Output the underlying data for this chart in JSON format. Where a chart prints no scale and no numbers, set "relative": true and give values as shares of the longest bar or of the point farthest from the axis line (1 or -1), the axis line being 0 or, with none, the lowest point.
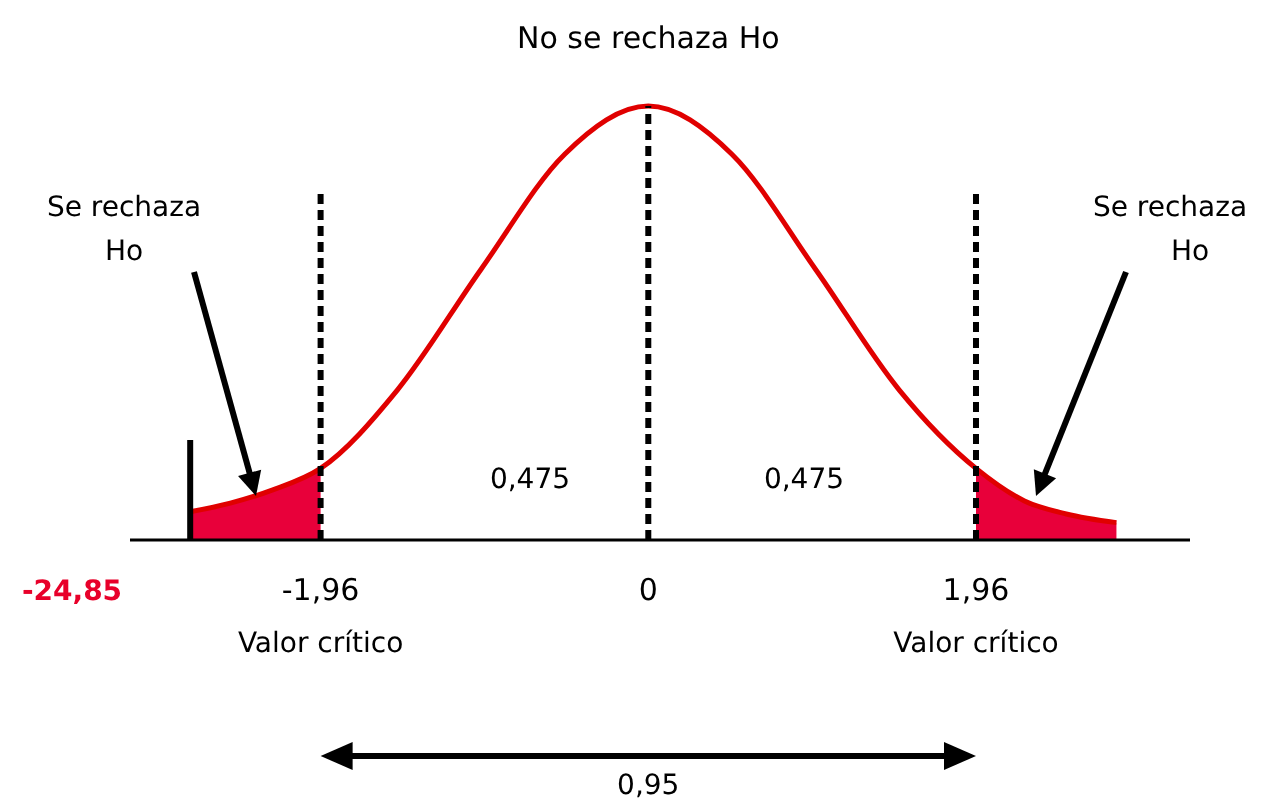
{
  "chart_data": {
    "type": "line",
    "title": "No se rechaza Ho",
    "relative": true,
    "xlim": [
      -3.1,
      3.24
    ],
    "xticks": [
      {
        "value": -1.96,
        "label": "-1,96"
      },
      {
        "value": 0,
        "label": "0"
      },
      {
        "value": 1.96,
        "label": "1,96"
      }
    ],
    "series": [
      {
        "type": "area",
        "color": "#e8003a",
        "x": [
          -2.74,
          -2.5,
          -2.25,
          -1.96
        ],
        "values": [
          0.065,
          0.085,
          0.115,
          0.165
        ]
      },
      {
        "type": "area",
        "color": "#e8003a",
        "x": [
          1.96,
          2.25,
          2.5,
          2.8
        ],
        "values": [
          0.165,
          0.09,
          0.06,
          0.04
        ]
      },
      {
        "color": "#e00000",
        "x": [
          -2.74,
          -2.5,
          -2.25,
          -1.96,
          -1.5,
          -1,
          -0.5,
          0,
          0.5,
          1,
          1.5,
          1.96,
          2.25,
          2.5,
          2.8
        ],
        "values": [
          0.065,
          0.085,
          0.115,
          0.165,
          0.346,
          0.624,
          0.889,
          1,
          0.889,
          0.624,
          0.346,
          0.165,
          0.09,
          0.06,
          0.04
        ]
      }
    ],
    "ref_lines": [
      {
        "axis": "x",
        "value": -1.96,
        "line_style": "dashed"
      },
      {
        "axis": "x",
        "value": 0,
        "line_style": "dashed"
      },
      {
        "axis": "x",
        "value": 1.96,
        "line_style": "dashed"
      },
      {
        "axis": "x",
        "value": -2.74,
        "line_style": "solid"
      }
    ],
    "annotations": [
      "Se rechaza Ho",
      "Se rechaza Ho",
      "0,475",
      "0,475",
      "-24,85",
      "Valor crítico",
      "Valor crítico",
      "0,95"
    ],
    "line_style": "solid",
    "marker": "none",
    "grid": false
  }
}
